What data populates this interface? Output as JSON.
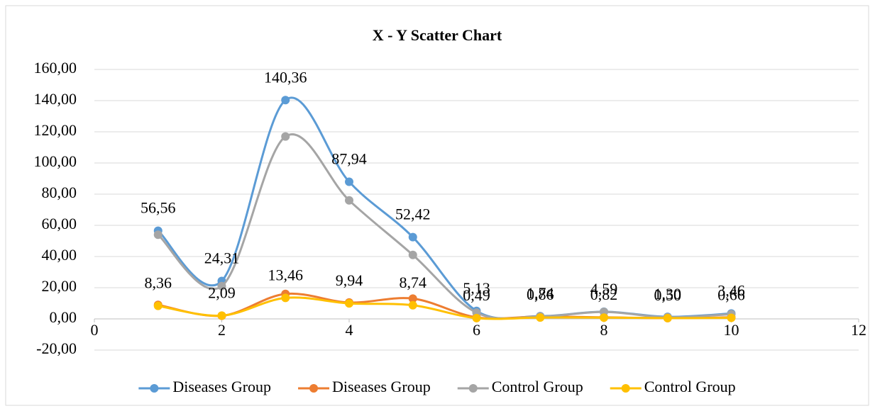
{
  "chart_data": {
    "type": "scatter",
    "title": "X - Y Scatter Chart",
    "x": [
      1,
      2,
      3,
      4,
      5,
      6,
      7,
      8,
      9,
      10
    ],
    "series": [
      {
        "name": "Diseases Group",
        "color": "#5b9bd5",
        "values": [
          56.56,
          24.31,
          140.36,
          87.94,
          52.42,
          5.13,
          1.74,
          4.59,
          1.3,
          3.46
        ],
        "value_labels": [
          "56,56",
          "24,31",
          "140,36",
          "87,94",
          "52,42",
          "5,13",
          "1,74",
          "4,59",
          "1,30",
          "3,46"
        ]
      },
      {
        "name": "Diseases Group",
        "color": "#ed7d31",
        "values": [
          9,
          2,
          16,
          10.5,
          13,
          1,
          1.5,
          1,
          0.5,
          1
        ]
      },
      {
        "name": "Control Group",
        "color": "#a5a5a5",
        "values": [
          54,
          21,
          117,
          76,
          41,
          4,
          1.5,
          4.5,
          1,
          3
        ]
      },
      {
        "name": "Control Group",
        "color": "#ffc000",
        "values": [
          8.36,
          2.09,
          13.46,
          9.94,
          8.74,
          0.49,
          0.86,
          0.82,
          0.5,
          0.66
        ],
        "value_labels": [
          "8,36",
          "2,09",
          "13,46",
          "9,94",
          "8,74",
          "0,49",
          "0,86",
          "0,82",
          "0,50",
          "0,66"
        ]
      }
    ],
    "xlim": [
      0,
      12
    ],
    "xticks": [
      0,
      2,
      4,
      6,
      8,
      10,
      12
    ],
    "ylim": [
      -20,
      160
    ],
    "yticks": [
      {
        "value": -20,
        "label": "-20,00"
      },
      {
        "value": 0,
        "label": "0,00"
      },
      {
        "value": 20,
        "label": "20,00"
      },
      {
        "value": 40,
        "label": "40,00"
      },
      {
        "value": 60,
        "label": "60,00"
      },
      {
        "value": 80,
        "label": "80,00"
      },
      {
        "value": 100,
        "label": "100,00"
      },
      {
        "value": 120,
        "label": "120,00"
      },
      {
        "value": 140,
        "label": "140,00"
      },
      {
        "value": 160,
        "label": "160,00"
      }
    ],
    "grid": true,
    "smooth": true,
    "legend": "bottom"
  }
}
